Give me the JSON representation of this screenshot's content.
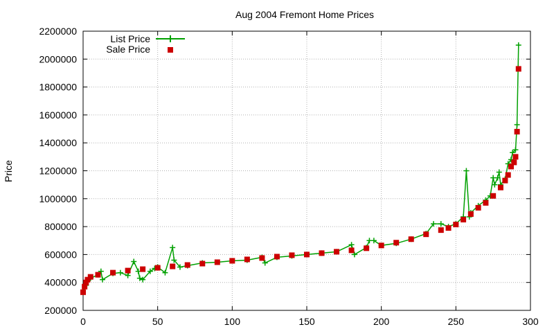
{
  "chart_data": {
    "type": "scatter",
    "title": "Aug 2004 Fremont Home Prices",
    "xlabel": "",
    "ylabel": "Price",
    "xlim": [
      0,
      300
    ],
    "ylim": [
      200000,
      2200000
    ],
    "x_ticks": [
      0,
      50,
      100,
      150,
      200,
      250,
      300
    ],
    "y_ticks": [
      200000,
      400000,
      600000,
      800000,
      1000000,
      1200000,
      1400000,
      1600000,
      1800000,
      2000000,
      2200000
    ],
    "grid": true,
    "legend_position": "top-left",
    "colors": {
      "list": "#00a000",
      "sale": "#cc0000"
    },
    "series": [
      {
        "name": "List Price",
        "style": "line-with-plus-markers",
        "points": [
          [
            0,
            330000
          ],
          [
            2,
            380000
          ],
          [
            5,
            430000
          ],
          [
            10,
            455000
          ],
          [
            12,
            480000
          ],
          [
            13,
            420000
          ],
          [
            20,
            465000
          ],
          [
            25,
            470000
          ],
          [
            30,
            450000
          ],
          [
            34,
            550000
          ],
          [
            37,
            480000
          ],
          [
            38,
            430000
          ],
          [
            40,
            420000
          ],
          [
            45,
            480000
          ],
          [
            48,
            500000
          ],
          [
            50,
            510000
          ],
          [
            55,
            470000
          ],
          [
            60,
            650000
          ],
          [
            61,
            560000
          ],
          [
            65,
            510000
          ],
          [
            70,
            520000
          ],
          [
            80,
            540000
          ],
          [
            90,
            545000
          ],
          [
            100,
            555000
          ],
          [
            110,
            560000
          ],
          [
            120,
            580000
          ],
          [
            122,
            540000
          ],
          [
            130,
            580000
          ],
          [
            140,
            590000
          ],
          [
            150,
            600000
          ],
          [
            160,
            610000
          ],
          [
            170,
            620000
          ],
          [
            180,
            670000
          ],
          [
            182,
            600000
          ],
          [
            190,
            650000
          ],
          [
            192,
            700000
          ],
          [
            195,
            700000
          ],
          [
            200,
            665000
          ],
          [
            210,
            680000
          ],
          [
            220,
            710000
          ],
          [
            230,
            750000
          ],
          [
            235,
            820000
          ],
          [
            240,
            820000
          ],
          [
            245,
            800000
          ],
          [
            250,
            820000
          ],
          [
            255,
            870000
          ],
          [
            257,
            1200000
          ],
          [
            259,
            870000
          ],
          [
            260,
            900000
          ],
          [
            265,
            950000
          ],
          [
            270,
            990000
          ],
          [
            273,
            1020000
          ],
          [
            275,
            1150000
          ],
          [
            276,
            1100000
          ],
          [
            278,
            1150000
          ],
          [
            279,
            1190000
          ],
          [
            280,
            1100000
          ],
          [
            283,
            1140000
          ],
          [
            285,
            1250000
          ],
          [
            287,
            1280000
          ],
          [
            288,
            1330000
          ],
          [
            290,
            1350000
          ],
          [
            291,
            1530000
          ],
          [
            292,
            2100000
          ]
        ]
      },
      {
        "name": "Sale Price",
        "style": "square-markers",
        "points": [
          [
            0,
            330000
          ],
          [
            1,
            370000
          ],
          [
            2,
            400000
          ],
          [
            3,
            420000
          ],
          [
            5,
            440000
          ],
          [
            10,
            455000
          ],
          [
            20,
            470000
          ],
          [
            30,
            485000
          ],
          [
            40,
            495000
          ],
          [
            50,
            505000
          ],
          [
            60,
            515000
          ],
          [
            70,
            525000
          ],
          [
            80,
            535000
          ],
          [
            90,
            545000
          ],
          [
            100,
            555000
          ],
          [
            110,
            565000
          ],
          [
            120,
            575000
          ],
          [
            130,
            585000
          ],
          [
            140,
            595000
          ],
          [
            150,
            600000
          ],
          [
            160,
            610000
          ],
          [
            170,
            620000
          ],
          [
            180,
            630000
          ],
          [
            190,
            645000
          ],
          [
            200,
            665000
          ],
          [
            210,
            685000
          ],
          [
            220,
            710000
          ],
          [
            230,
            745000
          ],
          [
            240,
            775000
          ],
          [
            245,
            790000
          ],
          [
            250,
            815000
          ],
          [
            255,
            850000
          ],
          [
            260,
            890000
          ],
          [
            265,
            935000
          ],
          [
            270,
            970000
          ],
          [
            275,
            1020000
          ],
          [
            280,
            1080000
          ],
          [
            283,
            1130000
          ],
          [
            285,
            1170000
          ],
          [
            287,
            1230000
          ],
          [
            289,
            1260000
          ],
          [
            290,
            1300000
          ],
          [
            291,
            1480000
          ],
          [
            292,
            1930000
          ]
        ]
      }
    ]
  }
}
